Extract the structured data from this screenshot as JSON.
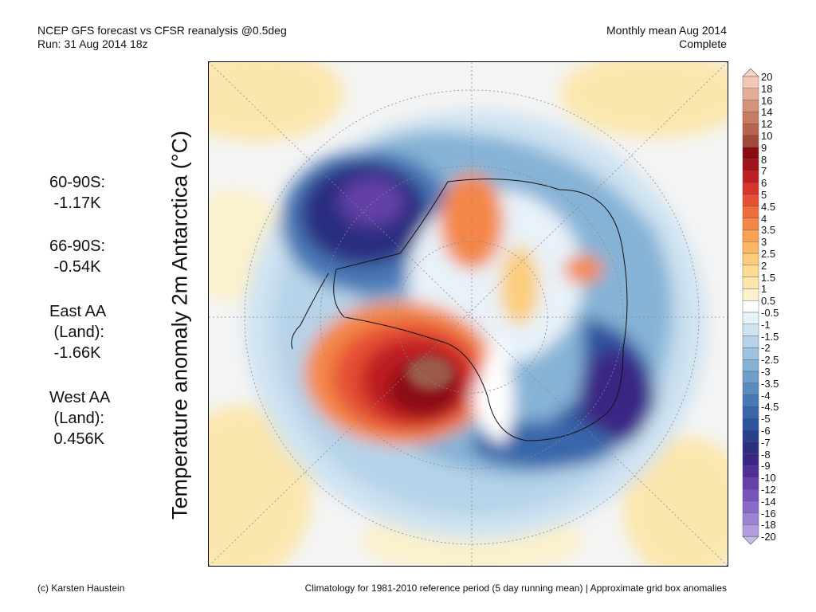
{
  "header": {
    "title_line1": "NCEP GFS forecast vs CFSR reanalysis @0.5deg",
    "title_line2": "Run: 31 Aug 2014 18z",
    "right_line1": "Monthly mean Aug 2014",
    "right_line2": "Complete"
  },
  "stats": [
    {
      "label": "60-90S:",
      "value": " -1.17K"
    },
    {
      "label": "66-90S:",
      "value": " -0.54K"
    },
    {
      "label": "East AA\n (Land):",
      "value": " -1.66K"
    },
    {
      "label": "West AA\n (Land):",
      "value": " 0.456K"
    }
  ],
  "map": {
    "ylabel": "Temperature anomaly 2m Antarctica (°C)"
  },
  "colorbar": {
    "labels": [
      "20",
      "18",
      "16",
      "14",
      "12",
      "10",
      "9",
      "8",
      "7",
      "6",
      "5",
      "4.5",
      "4",
      "3.5",
      "3",
      "2.5",
      "2",
      "1.5",
      "1",
      "0.5",
      "-0.5",
      "-1",
      "-1.5",
      "-2",
      "-2.5",
      "-3",
      "-3.5",
      "-4",
      "-4.5",
      "-5",
      "-6",
      "-7",
      "-8",
      "-9",
      "-10",
      "-12",
      "-14",
      "-16",
      "-18",
      "-20"
    ],
    "colors": [
      "#f2c8b4",
      "#e4ad95",
      "#d69379",
      "#c87a62",
      "#b9634f",
      "#a04a3c",
      "#8a0b12",
      "#a3131a",
      "#bf1f23",
      "#d8342b",
      "#e65035",
      "#ef6c3c",
      "#f48746",
      "#f8a155",
      "#fab866",
      "#fbcd7b",
      "#fbdc92",
      "#fbe7ad",
      "#fbf1cc",
      "#ffffff",
      "#e8f2f9",
      "#cfe3f1",
      "#b6d3e9",
      "#9dc3e0",
      "#86b2d6",
      "#6e9fcc",
      "#5a8bc0",
      "#4878b5",
      "#3966aa",
      "#2d539c",
      "#273f8d",
      "#2c2e80",
      "#3b2685",
      "#4d2f96",
      "#6440a8",
      "#7754ba",
      "#8a6ac8",
      "#9e82d3",
      "#b39cde"
    ],
    "top_color": "#f5d3c3",
    "bottom_color": "#c9b8ec"
  },
  "footer": {
    "left": "(c) Karsten Haustein",
    "right": "Climatology for 1981-2010 reference period (5 day running mean) | Approximate grid box anomalies"
  }
}
